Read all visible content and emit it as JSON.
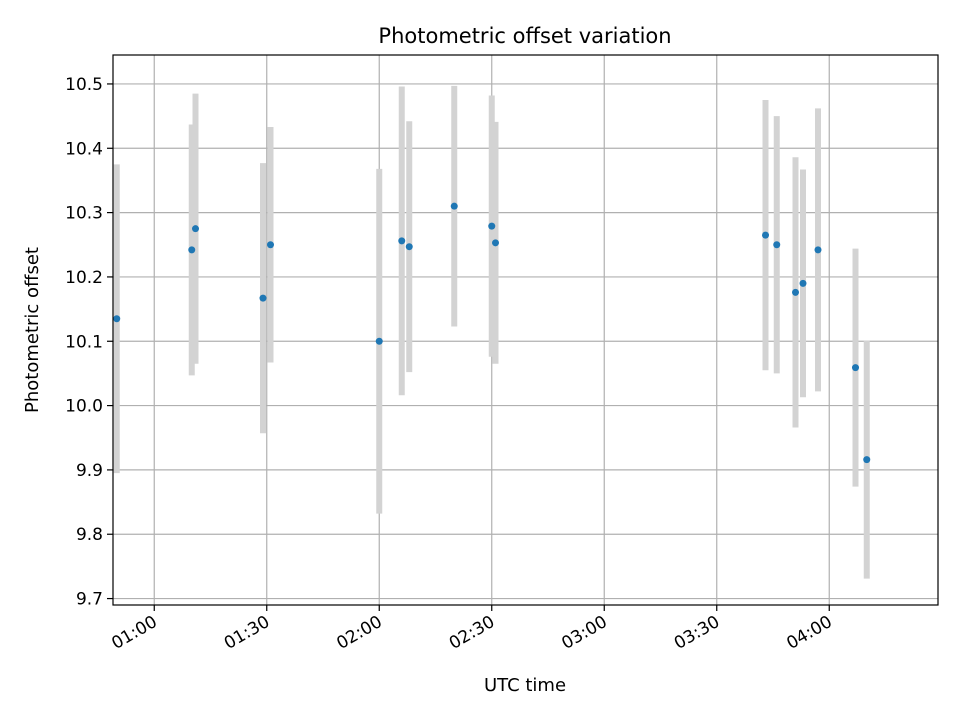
{
  "chart_data": {
    "type": "scatter",
    "title": "Photometric offset variation",
    "xlabel": "UTC time",
    "ylabel": "Photometric offset",
    "x_ticks": [
      "01:00",
      "01:30",
      "02:00",
      "02:30",
      "03:00",
      "03:30",
      "04:00"
    ],
    "y_ticks": [
      "9.7",
      "9.8",
      "9.9",
      "10.0",
      "10.1",
      "10.2",
      "10.3",
      "10.4",
      "10.5"
    ],
    "xlim": [
      "00:49",
      "04:29"
    ],
    "ylim": [
      9.69,
      10.545
    ],
    "grid": true,
    "colors": {
      "point": "#1f77b4",
      "errorbar": "#d3d3d3",
      "grid": "#b0b0b0"
    },
    "points": [
      {
        "x": "00:50",
        "y": 10.135,
        "err": 0.24
      },
      {
        "x": "01:10",
        "y": 10.242,
        "err": 0.195
      },
      {
        "x": "01:11",
        "y": 10.275,
        "err": 0.21
      },
      {
        "x": "01:29",
        "y": 10.167,
        "err": 0.21
      },
      {
        "x": "01:31",
        "y": 10.25,
        "err": 0.183
      },
      {
        "x": "02:00",
        "y": 10.1,
        "err": 0.268
      },
      {
        "x": "02:06",
        "y": 10.256,
        "err": 0.24
      },
      {
        "x": "02:08",
        "y": 10.247,
        "err": 0.195
      },
      {
        "x": "02:20",
        "y": 10.31,
        "err": 0.187
      },
      {
        "x": "02:30",
        "y": 10.279,
        "err": 0.203
      },
      {
        "x": "02:31",
        "y": 10.253,
        "err": 0.188
      },
      {
        "x": "03:43",
        "y": 10.265,
        "err": 0.21
      },
      {
        "x": "03:46",
        "y": 10.25,
        "err": 0.2
      },
      {
        "x": "03:51",
        "y": 10.176,
        "err": 0.21
      },
      {
        "x": "03:53",
        "y": 10.19,
        "err": 0.177
      },
      {
        "x": "03:57",
        "y": 10.242,
        "err": 0.22
      },
      {
        "x": "04:07",
        "y": 10.059,
        "err": 0.185
      },
      {
        "x": "04:10",
        "y": 9.916,
        "err": 0.185
      }
    ]
  }
}
